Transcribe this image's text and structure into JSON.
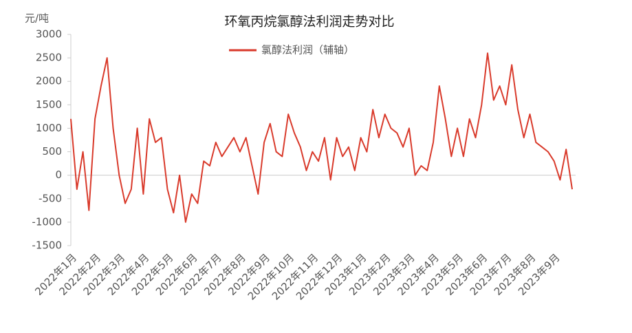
{
  "chart_data": {
    "type": "line",
    "title": "环氧丙烷氯醇法利润走势对比",
    "y_unit": "元/吨",
    "categories": [
      "2022年1月",
      null,
      null,
      null,
      "2022年2月",
      null,
      null,
      null,
      "2022年3月",
      null,
      null,
      null,
      "2022年4月",
      null,
      null,
      null,
      "2022年5月",
      null,
      null,
      null,
      "2022年6月",
      null,
      null,
      null,
      "2022年7月",
      null,
      null,
      null,
      "2022年8月",
      null,
      null,
      null,
      "2022年9月",
      null,
      null,
      null,
      "2022年10月",
      null,
      null,
      null,
      "2022年11月",
      null,
      null,
      null,
      "2022年12月",
      null,
      null,
      null,
      "2023年1月",
      null,
      null,
      null,
      "2023年2月",
      null,
      null,
      null,
      "2023年3月",
      null,
      null,
      null,
      "2023年4月",
      null,
      null,
      null,
      "2023年5月",
      null,
      null,
      null,
      "2023年6月",
      null,
      null,
      null,
      "2023年7月",
      null,
      null,
      null,
      "2023年8月",
      null,
      null,
      null,
      "2023年9月",
      null,
      null,
      null
    ],
    "series": [
      {
        "name": "氯醇法利润（辅轴）",
        "color": "#d93a2b",
        "values": [
          1200,
          -300,
          500,
          -750,
          1200,
          1900,
          2500,
          1000,
          0,
          -600,
          -300,
          1000,
          -400,
          1200,
          700,
          800,
          -300,
          -800,
          0,
          -1000,
          -400,
          -600,
          300,
          200,
          700,
          400,
          600,
          800,
          500,
          800,
          200,
          -400,
          700,
          1100,
          500,
          400,
          1300,
          900,
          600,
          100,
          500,
          300,
          800,
          -100,
          800,
          400,
          600,
          100,
          800,
          500,
          1400,
          800,
          1300,
          1000,
          900,
          600,
          1000,
          0,
          200,
          100,
          700,
          1900,
          1200,
          400,
          1000,
          400,
          1200,
          800,
          1500,
          2600,
          1600,
          1900,
          1500,
          2350,
          1400,
          800,
          1300,
          700,
          600,
          500,
          300,
          -100,
          550,
          -300
        ]
      }
    ],
    "ylim": [
      -1500,
      3000
    ],
    "yticks": [
      -1500,
      -1000,
      -500,
      0,
      500,
      1000,
      1500,
      2000,
      2500,
      3000
    ],
    "grid": false
  }
}
